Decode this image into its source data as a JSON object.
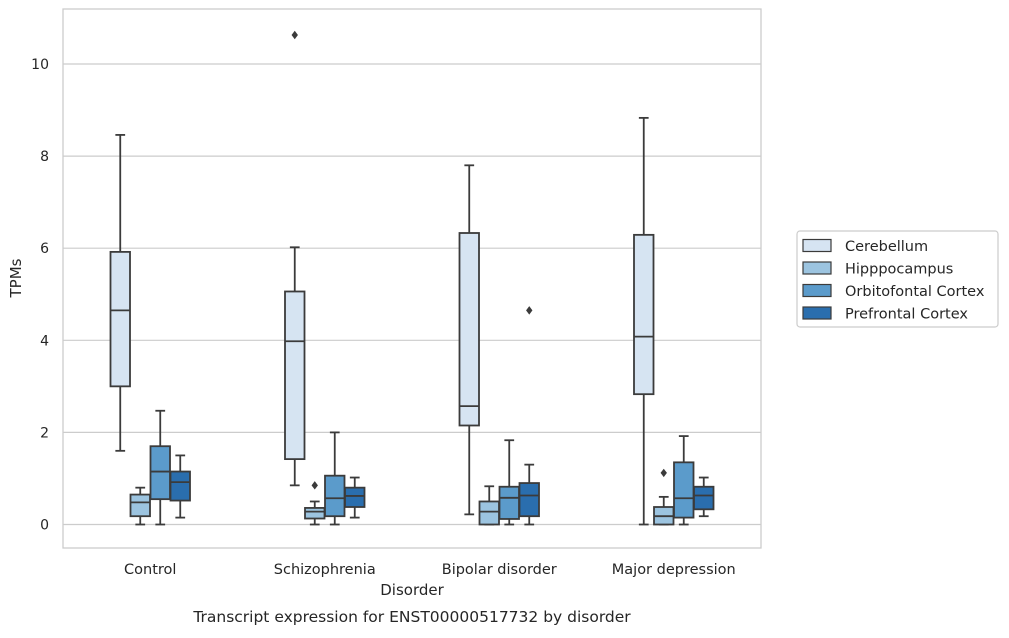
{
  "chart_data": {
    "type": "box",
    "title": "",
    "xlabel": "Disorder",
    "ylabel": "TPMs",
    "caption": "Transcript expression for ENST00000517732 by disorder",
    "categories": [
      "Control",
      "Schizophrenia",
      "Bipolar disorder",
      "Major depression"
    ],
    "yticks": [
      0,
      2,
      4,
      6,
      8,
      10
    ],
    "ylim": [
      -0.5,
      11.2
    ],
    "grid": "horizontal",
    "legend_position": "right",
    "series": [
      {
        "name": "Cerebellum",
        "color": "#d6e4f2",
        "boxes": [
          {
            "whislo": 1.6,
            "q1": 3.0,
            "med": 4.65,
            "q3": 5.92,
            "whishi": 8.46,
            "fliers": []
          },
          {
            "whislo": 0.85,
            "q1": 1.42,
            "med": 3.98,
            "q3": 5.06,
            "whishi": 6.02,
            "fliers": [
              10.63
            ]
          },
          {
            "whislo": 0.22,
            "q1": 2.15,
            "med": 2.57,
            "q3": 6.33,
            "whishi": 7.8,
            "fliers": []
          },
          {
            "whislo": 0.0,
            "q1": 2.83,
            "med": 4.08,
            "q3": 6.29,
            "whishi": 8.83,
            "fliers": []
          }
        ]
      },
      {
        "name": "Hipppocampus",
        "color": "#9cc4e0",
        "boxes": [
          {
            "whislo": 0.0,
            "q1": 0.18,
            "med": 0.48,
            "q3": 0.65,
            "whishi": 0.8,
            "fliers": []
          },
          {
            "whislo": 0.0,
            "q1": 0.13,
            "med": 0.28,
            "q3": 0.36,
            "whishi": 0.5,
            "fliers": [
              0.85
            ]
          },
          {
            "whislo": 0.0,
            "q1": 0.0,
            "med": 0.28,
            "q3": 0.5,
            "whishi": 0.83,
            "fliers": []
          },
          {
            "whislo": 0.0,
            "q1": 0.0,
            "med": 0.18,
            "q3": 0.38,
            "whishi": 0.6,
            "fliers": [
              1.12
            ]
          }
        ]
      },
      {
        "name": "Orbitofontal Cortex",
        "color": "#5b9bcb",
        "boxes": [
          {
            "whislo": 0.0,
            "q1": 0.55,
            "med": 1.15,
            "q3": 1.7,
            "whishi": 2.47,
            "fliers": []
          },
          {
            "whislo": 0.0,
            "q1": 0.18,
            "med": 0.57,
            "q3": 1.06,
            "whishi": 2.0,
            "fliers": []
          },
          {
            "whislo": 0.0,
            "q1": 0.12,
            "med": 0.58,
            "q3": 0.82,
            "whishi": 1.83,
            "fliers": []
          },
          {
            "whislo": 0.0,
            "q1": 0.15,
            "med": 0.57,
            "q3": 1.35,
            "whishi": 1.92,
            "fliers": []
          }
        ]
      },
      {
        "name": "Prefrontal Cortex",
        "color": "#2a6eae",
        "boxes": [
          {
            "whislo": 0.15,
            "q1": 0.52,
            "med": 0.92,
            "q3": 1.15,
            "whishi": 1.5,
            "fliers": []
          },
          {
            "whislo": 0.15,
            "q1": 0.38,
            "med": 0.62,
            "q3": 0.8,
            "whishi": 1.02,
            "fliers": []
          },
          {
            "whislo": 0.0,
            "q1": 0.18,
            "med": 0.63,
            "q3": 0.9,
            "whishi": 1.3,
            "fliers": [
              4.65
            ]
          },
          {
            "whislo": 0.18,
            "q1": 0.33,
            "med": 0.63,
            "q3": 0.82,
            "whishi": 1.02,
            "fliers": []
          }
        ]
      }
    ]
  }
}
